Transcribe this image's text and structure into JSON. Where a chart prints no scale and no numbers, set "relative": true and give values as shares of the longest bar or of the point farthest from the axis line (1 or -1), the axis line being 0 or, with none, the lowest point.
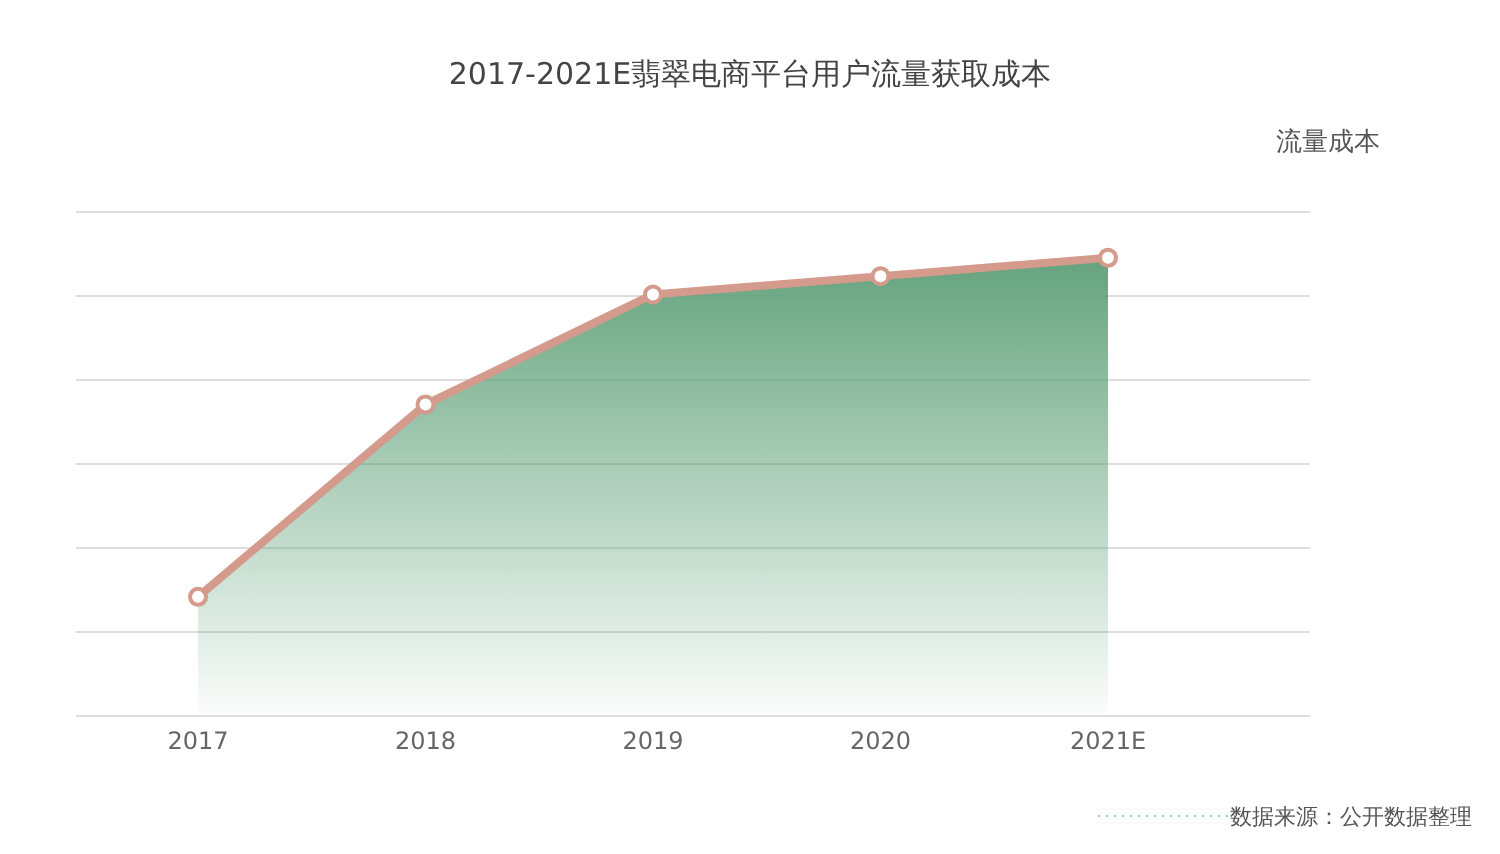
{
  "chart_data": {
    "type": "area",
    "title": "2017-2021E翡翠电商平台用户流量获取成本",
    "ylabel": "流量成本",
    "categories": [
      "2017",
      "2018",
      "2019",
      "2020",
      "2021E"
    ],
    "relative": true,
    "series": [
      {
        "color": "#d49a8c",
        "values": [
          0.26,
          0.68,
          0.92,
          0.96,
          1
        ]
      }
    ],
    "marker": "circle",
    "grid": "y",
    "annotations": [
      "数据来源：公开数据整理"
    ]
  }
}
